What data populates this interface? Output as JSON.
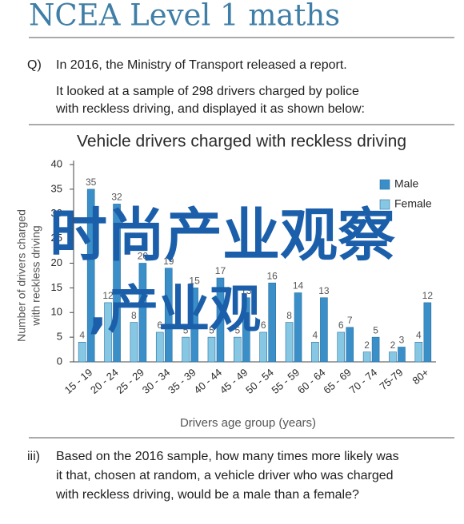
{
  "header": {
    "title": "NCEA Level 1 maths"
  },
  "question": {
    "label": "Q)",
    "lines": [
      "In 2016, the Ministry of Transport released a report.",
      "It looked at a sample of 298 drivers charged by police",
      "with reckless driving, and displayed it as shown below:"
    ]
  },
  "chart_data": {
    "type": "grouped-bar",
    "title": "Vehicle drivers charged with reckless driving",
    "x_label": "Drivers age group (years)",
    "y_label": [
      "Number of drivers charged",
      "with reckless driving"
    ],
    "categories": [
      "15 - 19",
      "20 - 24",
      "25 - 29",
      "30 - 34",
      "35 - 39",
      "40 - 44",
      "45 - 49",
      "50 - 54",
      "55 - 59",
      "60 - 64",
      "65 - 69",
      "70 - 74",
      "75-79",
      "80+"
    ],
    "series": [
      {
        "name": "Male",
        "color": "#3a8fc8",
        "values": [
          35,
          32,
          20,
          19,
          15,
          17,
          13,
          16,
          14,
          13,
          7,
          5,
          3,
          12
        ]
      },
      {
        "name": "Female",
        "color": "#86c8e4",
        "values": [
          4,
          12,
          8,
          6,
          5,
          5,
          5,
          6,
          8,
          4,
          6,
          2,
          2,
          4
        ]
      }
    ],
    "ylim": [
      0,
      40
    ],
    "yticks": [
      0,
      5,
      10,
      15,
      20,
      25,
      30,
      35,
      40
    ],
    "grid": false,
    "legend": "top-right"
  },
  "question_iii": {
    "label": "iii)",
    "lines": [
      "Based on the 2016 sample, how many times more likely was",
      "it that, chosen at random, a vehicle driver who was charged",
      "with reckless driving, would be a male than a female?"
    ]
  },
  "watermark": [
    "时尚产业观察",
    ",产业观"
  ]
}
